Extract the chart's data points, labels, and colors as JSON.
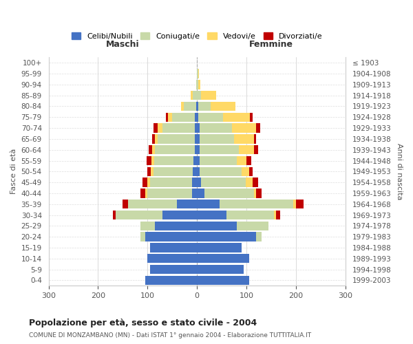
{
  "age_groups": [
    "0-4",
    "5-9",
    "10-14",
    "15-19",
    "20-24",
    "25-29",
    "30-34",
    "35-39",
    "40-44",
    "45-49",
    "50-54",
    "55-59",
    "60-64",
    "65-69",
    "70-74",
    "75-79",
    "80-84",
    "85-89",
    "90-94",
    "95-99",
    "100+"
  ],
  "birth_years": [
    "1999-2003",
    "1994-1998",
    "1989-1993",
    "1984-1988",
    "1979-1983",
    "1974-1978",
    "1969-1973",
    "1964-1968",
    "1959-1963",
    "1954-1958",
    "1949-1953",
    "1944-1948",
    "1939-1943",
    "1934-1938",
    "1929-1933",
    "1924-1928",
    "1919-1923",
    "1914-1918",
    "1909-1913",
    "1904-1908",
    "≤ 1903"
  ],
  "males": {
    "celibi": [
      105,
      95,
      100,
      95,
      105,
      85,
      70,
      40,
      10,
      10,
      8,
      7,
      5,
      5,
      5,
      5,
      2,
      0,
      0,
      0,
      0
    ],
    "coniugati": [
      0,
      0,
      0,
      0,
      10,
      30,
      95,
      100,
      90,
      85,
      80,
      80,
      80,
      75,
      65,
      45,
      25,
      8,
      2,
      0,
      0
    ],
    "vedovi": [
      0,
      0,
      0,
      0,
      0,
      0,
      0,
      0,
      5,
      5,
      5,
      5,
      5,
      5,
      10,
      8,
      5,
      5,
      0,
      0,
      0
    ],
    "divorziati": [
      0,
      0,
      0,
      0,
      0,
      0,
      5,
      10,
      10,
      10,
      8,
      10,
      8,
      5,
      8,
      5,
      0,
      0,
      0,
      0,
      0
    ]
  },
  "females": {
    "nubili": [
      105,
      95,
      105,
      90,
      120,
      80,
      60,
      45,
      15,
      8,
      5,
      5,
      5,
      5,
      5,
      2,
      2,
      0,
      0,
      0,
      0
    ],
    "coniugate": [
      0,
      0,
      0,
      0,
      10,
      65,
      95,
      150,
      100,
      90,
      85,
      75,
      80,
      70,
      65,
      50,
      25,
      8,
      2,
      2,
      0
    ],
    "vedove": [
      0,
      0,
      0,
      0,
      0,
      0,
      5,
      5,
      5,
      15,
      15,
      20,
      30,
      40,
      50,
      55,
      50,
      30,
      5,
      2,
      0
    ],
    "divorziate": [
      0,
      0,
      0,
      0,
      0,
      0,
      8,
      15,
      10,
      10,
      8,
      10,
      8,
      5,
      8,
      5,
      0,
      0,
      0,
      0,
      0
    ]
  },
  "colors": {
    "celibi": "#4472c4",
    "coniugati": "#c8d9a8",
    "vedovi": "#ffd966",
    "divorziati": "#c00000"
  },
  "title": "Popolazione per età, sesso e stato civile - 2004",
  "subtitle": "COMUNE DI MONZAMBANO (MN) - Dati ISTAT 1° gennaio 2004 - Elaborazione TUTTITALIA.IT",
  "ylabel_left": "Fasce di età",
  "ylabel_right": "Anni di nascita",
  "xlabel_left": "Maschi",
  "xlabel_right": "Femmine",
  "xlim": 300,
  "legend_labels": [
    "Celibi/Nubili",
    "Coniugati/e",
    "Vedovi/e",
    "Divorziati/e"
  ],
  "background_color": "#ffffff",
  "bar_height": 0.85
}
